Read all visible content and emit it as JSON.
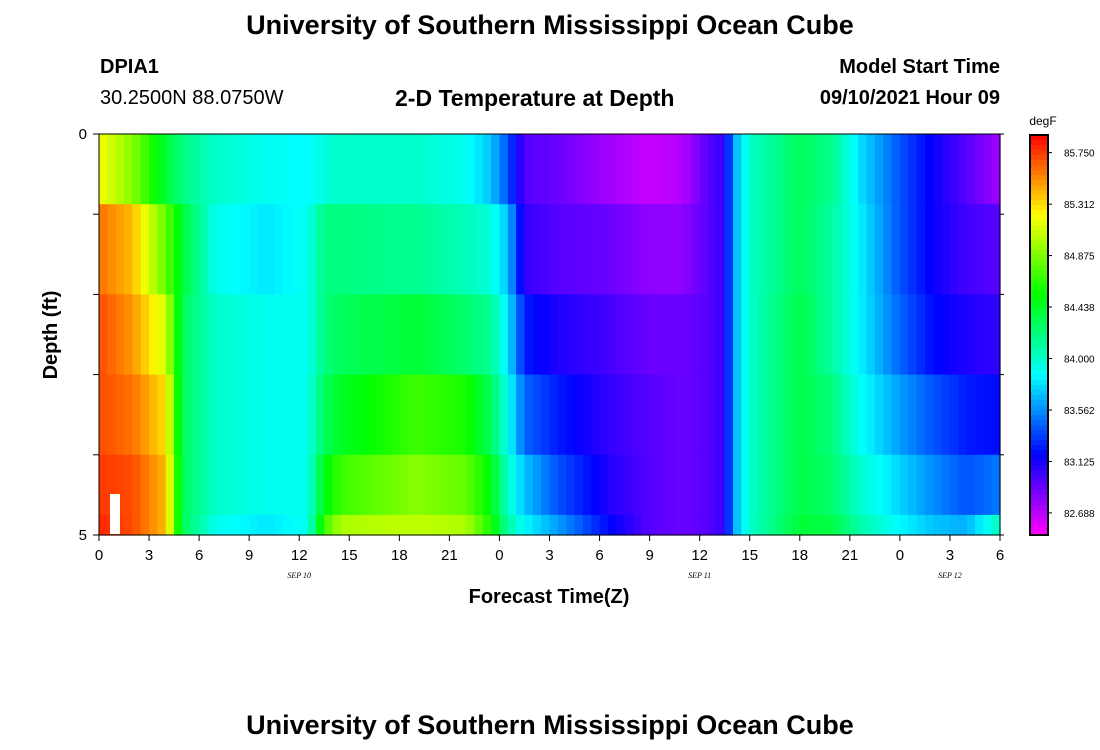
{
  "header": {
    "title": "University of Southern Mississippi Ocean Cube",
    "station_id": "DPIA1",
    "station_coords": "30.2500N  88.0750W",
    "subtitle": "2-D Temperature at Depth",
    "model_label": "Model Start Time",
    "model_time": "09/10/2021 Hour 09"
  },
  "footer": {
    "title": "University of Southern Mississippi Ocean Cube"
  },
  "chart_data": {
    "type": "heatmap",
    "title": "2-D Temperature at Depth",
    "xlabel": "Forecast Time(Z)",
    "ylabel": "Depth (ft)",
    "x_tick_labels": [
      "0",
      "3",
      "6",
      "9",
      "12",
      "15",
      "18",
      "21",
      "0",
      "3",
      "6",
      "9",
      "12",
      "15",
      "18",
      "21",
      "0",
      "3",
      "6"
    ],
    "x_range_hours": [
      0,
      54
    ],
    "day_labels": [
      {
        "label": "SEP 10",
        "hour": 12
      },
      {
        "label": "SEP 11",
        "hour": 36
      },
      {
        "label": "SEP 12",
        "hour": 51
      }
    ],
    "y_tick_labels": [
      "0",
      "5"
    ],
    "ylim": [
      5,
      0
    ],
    "colorbar": {
      "unit": "degF",
      "ticks": [
        "85.750",
        "85.312",
        "84.875",
        "84.438",
        "84.000",
        "83.562",
        "83.125",
        "82.688"
      ],
      "range": [
        82.5,
        85.9
      ]
    },
    "depths_ft": [
      0.25,
      1.5,
      2.5,
      3.5,
      4.5,
      5.0
    ],
    "keyframes": [
      {
        "hour": 0,
        "values": [
          85.2,
          85.6,
          85.7,
          85.7,
          85.75,
          85.8
        ]
      },
      {
        "hour": 2,
        "values": [
          84.9,
          85.4,
          85.5,
          85.6,
          85.7,
          85.7
        ]
      },
      {
        "hour": 4,
        "values": [
          84.4,
          84.8,
          85.1,
          85.3,
          85.4,
          85.4
        ]
      },
      {
        "hour": 5,
        "values": [
          84.2,
          84.4,
          84.3,
          84.3,
          84.3,
          84.3
        ]
      },
      {
        "hour": 7,
        "values": [
          84.0,
          83.9,
          84.0,
          84.0,
          84.0,
          83.9
        ]
      },
      {
        "hour": 10,
        "values": [
          83.9,
          83.8,
          83.9,
          83.9,
          83.9,
          83.8
        ]
      },
      {
        "hour": 12.5,
        "values": [
          83.85,
          83.9,
          83.9,
          83.9,
          83.9,
          83.9
        ]
      },
      {
        "hour": 13.5,
        "values": [
          83.95,
          84.2,
          84.2,
          84.3,
          84.5,
          84.7
        ]
      },
      {
        "hour": 14.5,
        "values": [
          84.0,
          84.2,
          84.3,
          84.45,
          84.7,
          85.0
        ]
      },
      {
        "hour": 19,
        "values": [
          84.0,
          84.15,
          84.4,
          84.7,
          84.9,
          85.05
        ]
      },
      {
        "hour": 22,
        "values": [
          83.9,
          84.05,
          84.25,
          84.6,
          84.8,
          85.0
        ]
      },
      {
        "hour": 23.5,
        "values": [
          83.7,
          83.95,
          84.15,
          84.3,
          84.5,
          84.6
        ]
      },
      {
        "hour": 24.5,
        "values": [
          83.4,
          83.7,
          83.8,
          83.9,
          84.0,
          84.1
        ]
      },
      {
        "hour": 25.5,
        "values": [
          82.95,
          83.05,
          83.25,
          83.45,
          83.7,
          83.85
        ]
      },
      {
        "hour": 27.5,
        "values": [
          82.9,
          82.95,
          83.1,
          83.25,
          83.4,
          83.6
        ]
      },
      {
        "hour": 30.5,
        "values": [
          82.75,
          82.9,
          83.0,
          83.05,
          83.1,
          83.2
        ]
      },
      {
        "hour": 33,
        "values": [
          82.65,
          82.8,
          82.9,
          82.95,
          82.95,
          82.95
        ]
      },
      {
        "hour": 35,
        "values": [
          82.7,
          82.8,
          82.9,
          82.9,
          82.9,
          82.9
        ]
      },
      {
        "hour": 36.5,
        "values": [
          82.95,
          82.95,
          82.95,
          82.95,
          82.95,
          82.95
        ]
      },
      {
        "hour": 37.5,
        "values": [
          83.05,
          83.05,
          83.05,
          83.05,
          83.05,
          83.05
        ]
      },
      {
        "hour": 38,
        "values": [
          83.6,
          83.6,
          83.6,
          83.6,
          83.6,
          83.6
        ]
      },
      {
        "hour": 39,
        "values": [
          84.0,
          84.0,
          84.0,
          84.0,
          84.0,
          84.0
        ]
      },
      {
        "hour": 42,
        "values": [
          84.3,
          84.3,
          84.35,
          84.35,
          84.35,
          84.4
        ]
      },
      {
        "hour": 44,
        "values": [
          84.15,
          84.1,
          84.1,
          84.2,
          84.25,
          84.35
        ]
      },
      {
        "hour": 45.5,
        "values": [
          83.8,
          83.85,
          83.85,
          83.9,
          84.0,
          84.1
        ]
      },
      {
        "hour": 48,
        "values": [
          83.4,
          83.4,
          83.45,
          83.6,
          83.75,
          83.85
        ]
      },
      {
        "hour": 50,
        "values": [
          83.15,
          83.15,
          83.2,
          83.4,
          83.55,
          83.7
        ]
      },
      {
        "hour": 52,
        "values": [
          82.95,
          83.0,
          83.1,
          83.25,
          83.4,
          83.65
        ]
      },
      {
        "hour": 54,
        "values": [
          82.75,
          82.95,
          83.05,
          83.2,
          83.5,
          84.05
        ]
      }
    ]
  }
}
